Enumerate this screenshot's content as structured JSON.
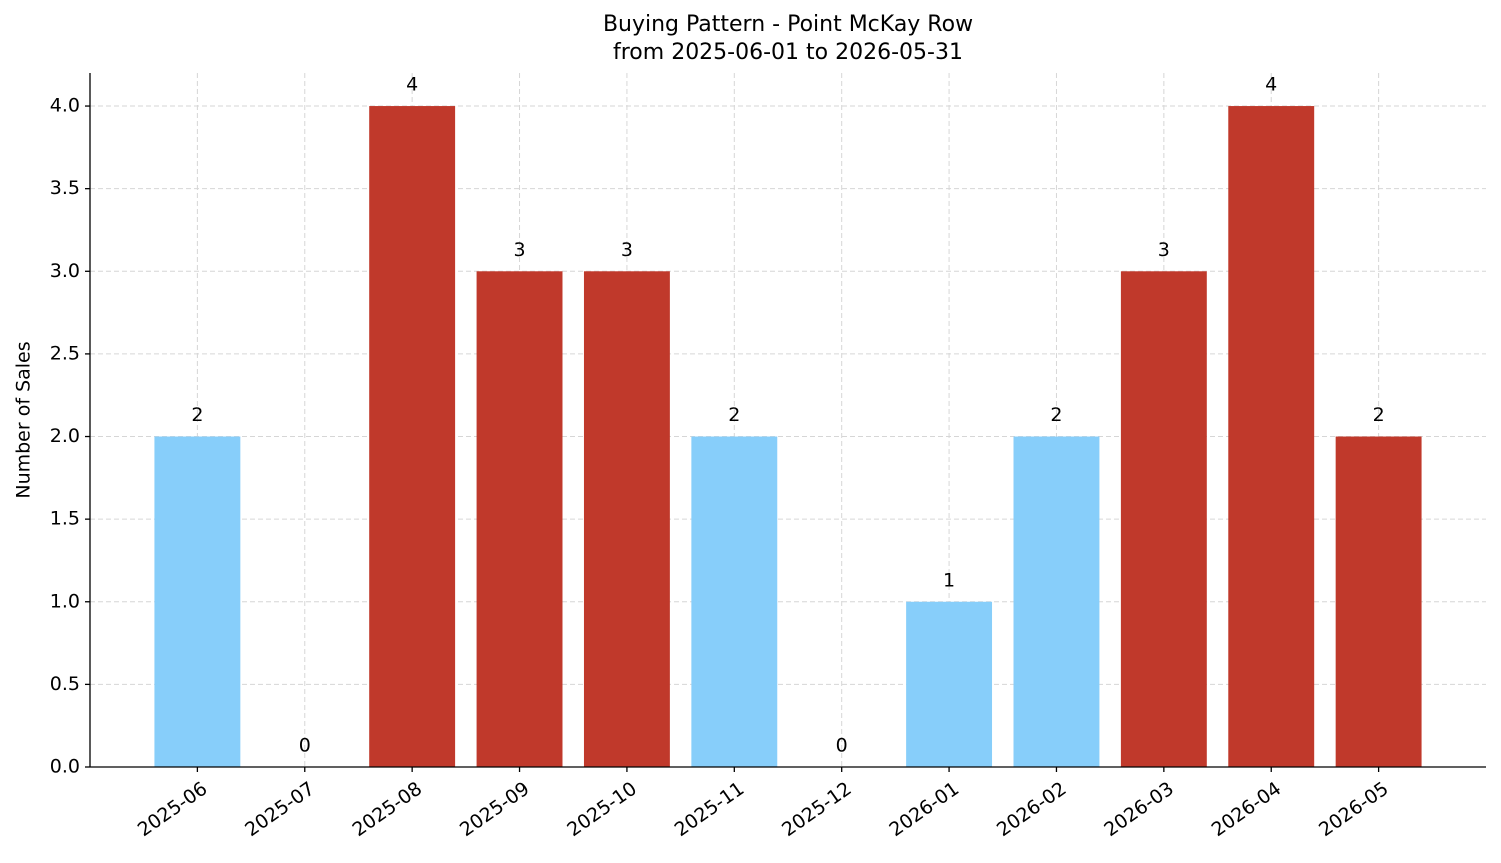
{
  "chart_data": {
    "type": "bar",
    "title": [
      "Buying Pattern - Point McKay Row",
      "from 2025-06-01 to 2026-05-31"
    ],
    "y_label": "Number of Sales",
    "categories": [
      "2025-06",
      "2025-07",
      "2025-08",
      "2025-09",
      "2025-10",
      "2025-11",
      "2025-12",
      "2026-01",
      "2026-02",
      "2026-03",
      "2026-04",
      "2026-05"
    ],
    "values": [
      2,
      0,
      4,
      3,
      3,
      2,
      0,
      1,
      2,
      3,
      4,
      2
    ],
    "colors": [
      "#87cefa",
      "#87cefa",
      "#c0392b",
      "#c0392b",
      "#c0392b",
      "#87cefa",
      "#87cefa",
      "#87cefa",
      "#87cefa",
      "#c0392b",
      "#c0392b",
      "#c0392b"
    ],
    "ylim": [
      0,
      4.2
    ],
    "yticks": [
      {
        "value": 0,
        "label": "0.0"
      },
      0.5,
      {
        "value": 1,
        "label": "1.0"
      },
      1.5,
      {
        "value": 2,
        "label": "2.0"
      },
      2.5,
      {
        "value": 3,
        "label": "3.0"
      },
      3.5,
      {
        "value": 4,
        "label": "4.0"
      }
    ],
    "grid": true
  }
}
